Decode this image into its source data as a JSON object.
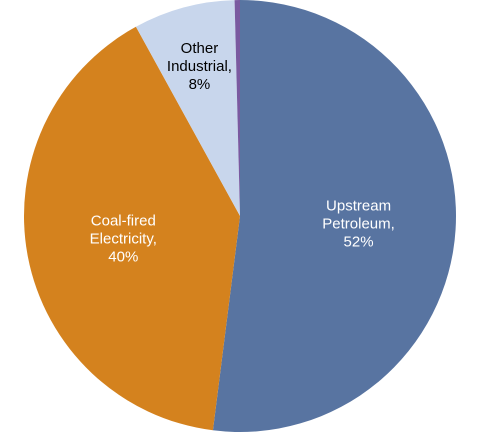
{
  "chart_data": {
    "type": "pie",
    "title": "",
    "slices": [
      {
        "label_lines": [
          "Upstream",
          "Petroleum,",
          "52%"
        ],
        "value": 52,
        "color": "#5874a1",
        "text_color": "#ffffff"
      },
      {
        "label_lines": [
          "Coal-fired",
          "Electricity,",
          "40%"
        ],
        "value": 40,
        "color": "#d4821e",
        "text_color": "#ffffff"
      },
      {
        "label_lines": [
          "Other",
          "Industrial,",
          "8%"
        ],
        "value": 7.6,
        "color": "#c8d6ec",
        "text_color": "#000000"
      },
      {
        "label_lines": [],
        "value": 0.4,
        "color": "#7a5aa0",
        "text_color": "#000000"
      }
    ],
    "start_angle_deg": 0,
    "direction": "clockwise",
    "legend": "none"
  }
}
